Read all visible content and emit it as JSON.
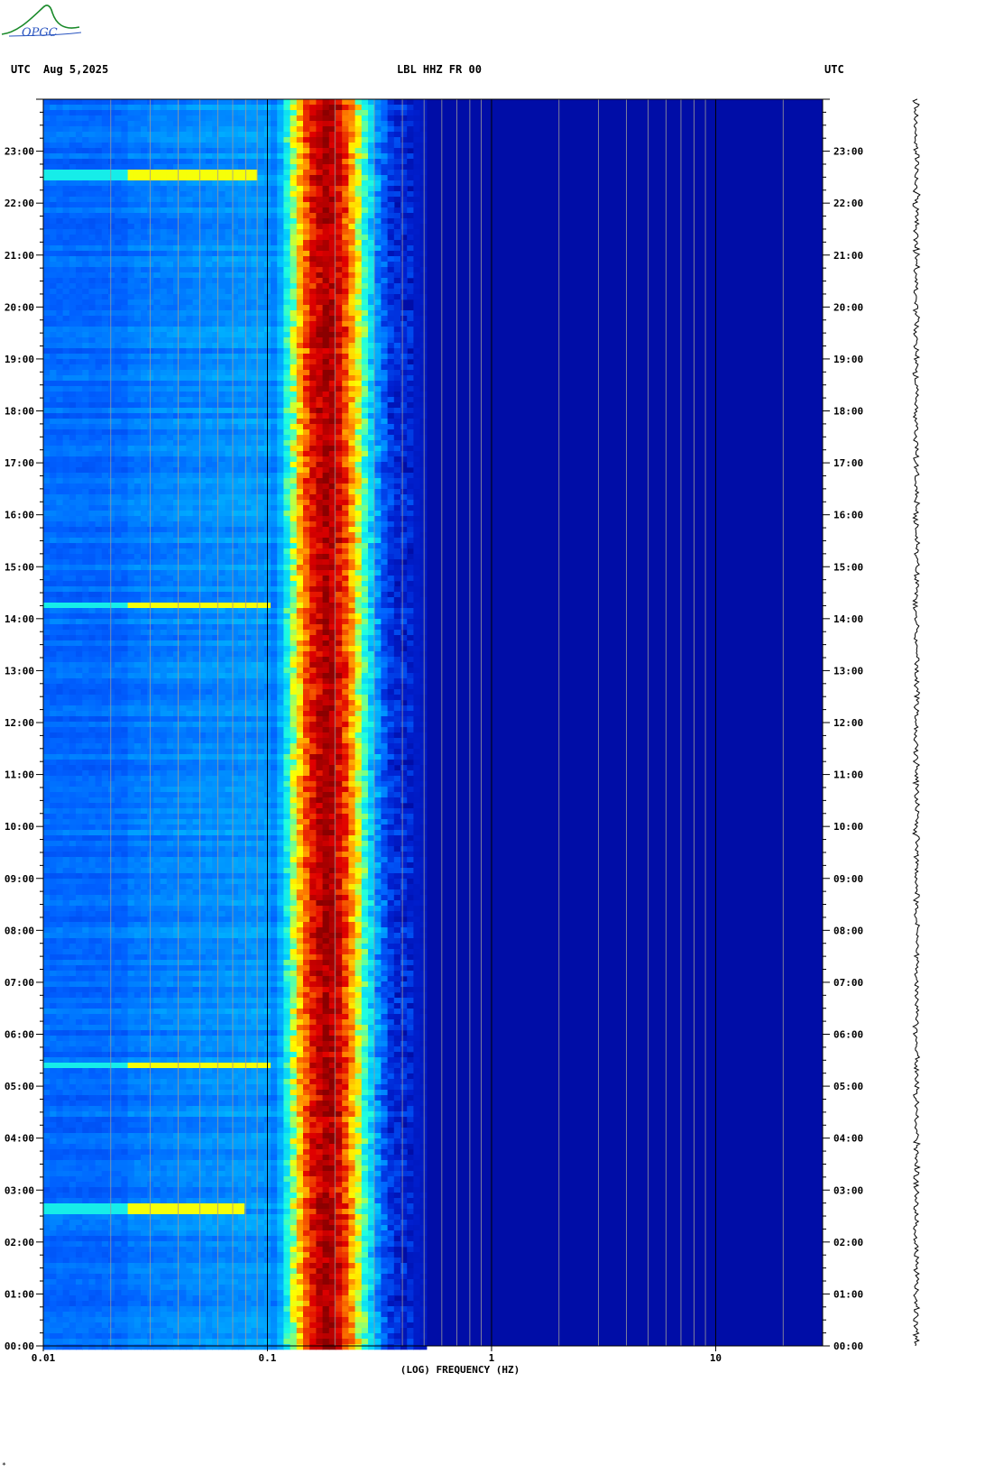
{
  "header": {
    "left_tz": "UTC",
    "date": "Aug 5,2025",
    "station": "LBL HHZ FR 00",
    "right_tz": "UTC"
  },
  "logo": {
    "text": "OPGC"
  },
  "footnote": "*",
  "chart_data": {
    "type": "heatmap",
    "title": "LBL HHZ FR 00",
    "xlabel": "(LOG) FREQUENCY (HZ)",
    "ylabel": "",
    "x_scale": "log",
    "xlim": [
      0.01,
      30
    ],
    "x_tick_labels": [
      "0.01",
      "0.1",
      "1",
      "10"
    ],
    "x_tick_values": [
      0.01,
      0.1,
      1,
      10
    ],
    "ylim_hours": [
      0,
      24
    ],
    "y_tick_labels": [
      "00:00",
      "01:00",
      "02:00",
      "03:00",
      "04:00",
      "05:00",
      "06:00",
      "07:00",
      "08:00",
      "09:00",
      "10:00",
      "11:00",
      "12:00",
      "13:00",
      "14:00",
      "15:00",
      "16:00",
      "17:00",
      "18:00",
      "19:00",
      "20:00",
      "21:00",
      "22:00",
      "23:00"
    ],
    "colormap": [
      "#00008b",
      "#0020d0",
      "#0060ff",
      "#00c8ff",
      "#20ffdf",
      "#ffff00",
      "#ff8000",
      "#e00000",
      "#8b0000"
    ],
    "microseism_peak_hz": 0.18,
    "events": [
      {
        "time_hours": 2.7,
        "max_freq_hz": 0.08
      },
      {
        "time_hours": 5.45,
        "max_freq_hz": 0.1
      },
      {
        "time_hours": 14.3,
        "max_freq_hz": 0.1
      },
      {
        "time_hours": 22.6,
        "max_freq_hz": 0.09
      }
    ],
    "grid": true,
    "legend": "none"
  }
}
